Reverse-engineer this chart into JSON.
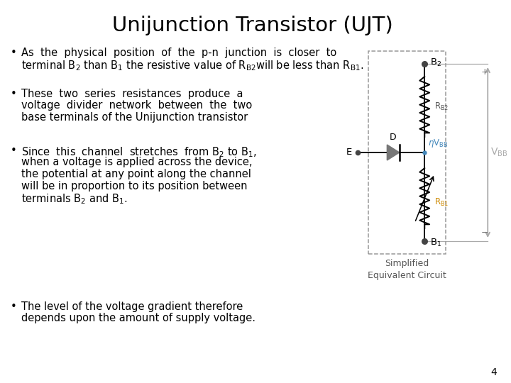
{
  "title": "Unijunction Transistor (UJT)",
  "title_fontsize": 21,
  "background_color": "#ffffff",
  "text_color": "#000000",
  "page_number": "4",
  "circuit_label": "Simplified\nEquivalent Circuit",
  "circuit_label_color": "#555555",
  "vbb_color": "#aaaaaa",
  "eta_color": "#4488bb",
  "rb2_color": "#555555",
  "rb1_color": "#cc8800"
}
